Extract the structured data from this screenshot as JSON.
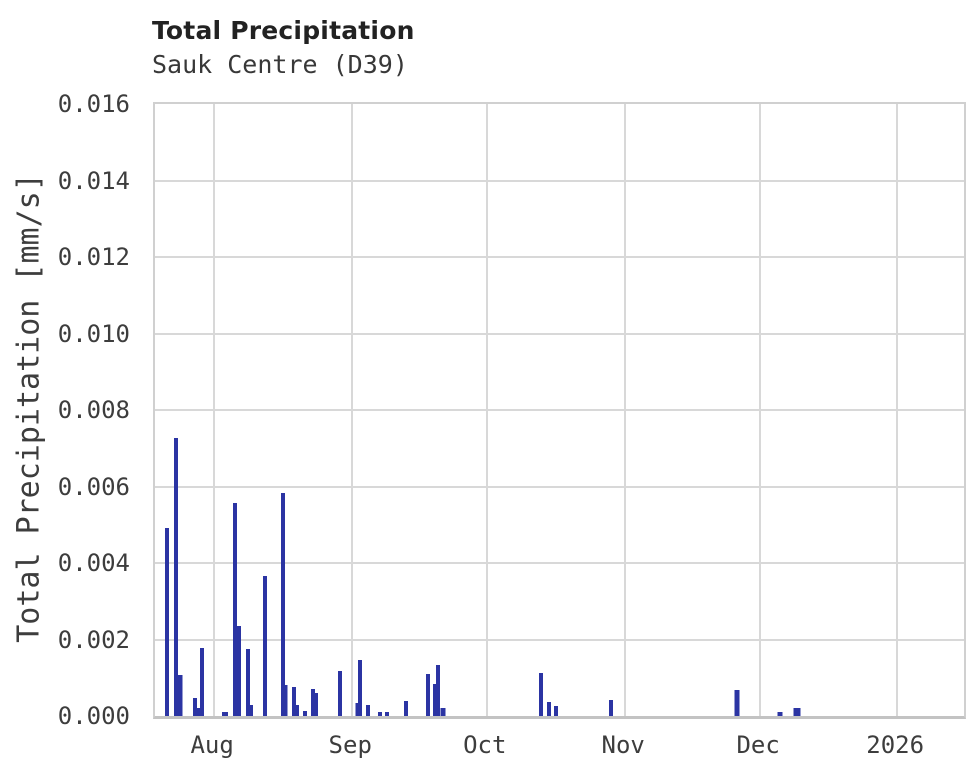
{
  "figure": {
    "title": "Total Precipitation",
    "subtitle": "Sauk Centre (D39)"
  },
  "chart_data": {
    "type": "bar",
    "title": "Total Precipitation",
    "subtitle": "Sauk Centre (D39)",
    "xlabel": "",
    "ylabel": "Total Precipitation [mm/s]",
    "ylim": [
      0,
      0.016
    ],
    "ytick_step": 0.002,
    "grid": true,
    "legend": "none",
    "background": "#ffffff",
    "colors": {
      "bar": "#2b34a3",
      "grid": "#d8d8d8",
      "border": "#d0d0d0",
      "axis_line": "#c3c3c3",
      "title": "#222222",
      "text": "#3d3d3d"
    },
    "yticks": [
      "0.000",
      "0.002",
      "0.004",
      "0.006",
      "0.008",
      "0.010",
      "0.012",
      "0.014",
      "0.016"
    ],
    "xticks": [
      {
        "label": "Aug",
        "x": 0.0731
      },
      {
        "label": "Sep",
        "x": 0.2438
      },
      {
        "label": "Oct",
        "x": 0.4101
      },
      {
        "label": "Nov",
        "x": 0.5812
      },
      {
        "label": "Dec",
        "x": 0.748
      },
      {
        "label": "2026",
        "x": 0.9174
      }
    ],
    "bars": [
      {
        "x": 0.0148,
        "v": 0.00491,
        "w": 4
      },
      {
        "x": 0.0265,
        "v": 0.00727,
        "w": 4
      },
      {
        "x": 0.0314,
        "v": 0.00108,
        "w": 5
      },
      {
        "x": 0.0493,
        "v": 0.00047,
        "w": 4
      },
      {
        "x": 0.0536,
        "v": 0.00022,
        "w": 4
      },
      {
        "x": 0.0586,
        "v": 0.00177,
        "w": 4
      },
      {
        "x": 0.0863,
        "v": 0.0001,
        "w": 6
      },
      {
        "x": 0.0993,
        "v": 0.00556,
        "w": 4
      },
      {
        "x": 0.1036,
        "v": 0.00235,
        "w": 4
      },
      {
        "x": 0.1147,
        "v": 0.00176,
        "w": 4
      },
      {
        "x": 0.119,
        "v": 0.0003,
        "w": 4
      },
      {
        "x": 0.1356,
        "v": 0.00365,
        "w": 4
      },
      {
        "x": 0.1578,
        "v": 0.00583,
        "w": 4
      },
      {
        "x": 0.1609,
        "v": 0.0008,
        "w": 5
      },
      {
        "x": 0.1714,
        "v": 0.00076,
        "w": 4
      },
      {
        "x": 0.1757,
        "v": 0.00028,
        "w": 4
      },
      {
        "x": 0.185,
        "v": 0.00012,
        "w": 4
      },
      {
        "x": 0.1948,
        "v": 0.0007,
        "w": 4
      },
      {
        "x": 0.1991,
        "v": 0.0006,
        "w": 4
      },
      {
        "x": 0.2281,
        "v": 0.00117,
        "w": 4
      },
      {
        "x": 0.2515,
        "v": 0.00035,
        "w": 5
      },
      {
        "x": 0.254,
        "v": 0.00146,
        "w": 4
      },
      {
        "x": 0.2639,
        "v": 0.00029,
        "w": 4
      },
      {
        "x": 0.2787,
        "v": 0.0001,
        "w": 4
      },
      {
        "x": 0.2873,
        "v": 0.00011,
        "w": 4
      },
      {
        "x": 0.3107,
        "v": 0.00039,
        "w": 4
      },
      {
        "x": 0.3378,
        "v": 0.00111,
        "w": 4
      },
      {
        "x": 0.3465,
        "v": 0.00085,
        "w": 4
      },
      {
        "x": 0.3502,
        "v": 0.00134,
        "w": 4
      },
      {
        "x": 0.3558,
        "v": 0.0002,
        "w": 5
      },
      {
        "x": 0.4772,
        "v": 0.00112,
        "w": 4
      },
      {
        "x": 0.4871,
        "v": 0.00037,
        "w": 4
      },
      {
        "x": 0.4957,
        "v": 0.00026,
        "w": 4
      },
      {
        "x": 0.5635,
        "v": 0.00041,
        "w": 4
      },
      {
        "x": 0.7194,
        "v": 0.00067,
        "w": 5
      },
      {
        "x": 0.7731,
        "v": 0.0001,
        "w": 5
      },
      {
        "x": 0.794,
        "v": 0.0002,
        "w": 7
      }
    ]
  }
}
